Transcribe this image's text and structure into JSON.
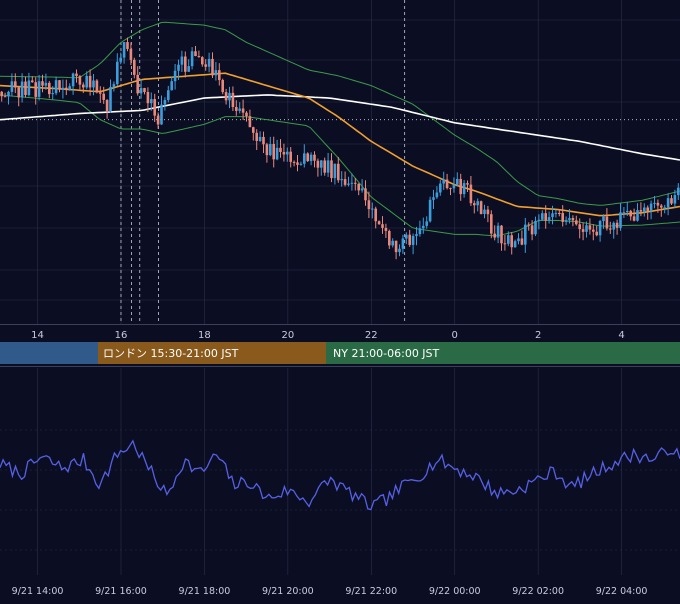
{
  "colors": {
    "background": "#0b0e22",
    "grid": "#2a2f4a",
    "candle_up": "#3b9ddc",
    "candle_down": "#e8887a",
    "bollinger": "#3c9a4a",
    "ma_short": "#f0a030",
    "ma_long": "#ffffff",
    "oscillator": "#5560e6",
    "session_tokyo": "#2f5a8a",
    "session_london": "#8a5a1c",
    "session_ny": "#2a6b45"
  },
  "sessions": [
    {
      "label": "",
      "color": "#2f5a8a"
    },
    {
      "label": "ロンドン 15:30-21:00 JST",
      "color": "#8a5a1c"
    },
    {
      "label": "NY 21:00-06:00 JST",
      "color": "#2a6b45"
    }
  ],
  "chart_data": [
    {
      "type": "candlestick",
      "title": "",
      "xlabel": "",
      "ylabel": "",
      "grid": true,
      "x_ticks": [
        "14",
        "16",
        "18",
        "20",
        "22",
        "0",
        "2",
        "4"
      ],
      "x_tick_hours": [
        14,
        16,
        18,
        20,
        22,
        24,
        26,
        28
      ],
      "x_range_hours": [
        13.1,
        29.4
      ],
      "y_scale_note": "relative price levels (no price axis visible)",
      "y_range": [
        0,
        100
      ],
      "vertical_markers_hours": [
        16.0,
        16.25,
        16.45,
        16.9,
        22.8
      ],
      "horizontal_marker_level": 63,
      "key_points": [
        {
          "h": 13.1,
          "price": 72
        },
        {
          "h": 14.5,
          "price": 74
        },
        {
          "h": 15.2,
          "price": 76
        },
        {
          "h": 15.7,
          "price": 68
        },
        {
          "h": 16.1,
          "price": 90
        },
        {
          "h": 16.4,
          "price": 72
        },
        {
          "h": 16.9,
          "price": 64
        },
        {
          "h": 17.4,
          "price": 80
        },
        {
          "h": 17.9,
          "price": 84
        },
        {
          "h": 18.5,
          "price": 72
        },
        {
          "h": 19.0,
          "price": 62
        },
        {
          "h": 19.6,
          "price": 52
        },
        {
          "h": 20.5,
          "price": 50
        },
        {
          "h": 21.2,
          "price": 46
        },
        {
          "h": 21.7,
          "price": 42
        },
        {
          "h": 22.3,
          "price": 26
        },
        {
          "h": 22.7,
          "price": 22
        },
        {
          "h": 23.2,
          "price": 28
        },
        {
          "h": 23.6,
          "price": 40
        },
        {
          "h": 24.0,
          "price": 44
        },
        {
          "h": 24.5,
          "price": 36
        },
        {
          "h": 25.0,
          "price": 26
        },
        {
          "h": 25.5,
          "price": 24
        },
        {
          "h": 26.0,
          "price": 30
        },
        {
          "h": 26.6,
          "price": 32
        },
        {
          "h": 27.2,
          "price": 28
        },
        {
          "h": 27.8,
          "price": 30
        },
        {
          "h": 28.6,
          "price": 33
        },
        {
          "h": 29.4,
          "price": 40
        }
      ],
      "ma_short_points": [
        [
          13.1,
          74
        ],
        [
          14.5,
          73
        ],
        [
          15.5,
          72
        ],
        [
          16.5,
          76
        ],
        [
          17.5,
          77
        ],
        [
          18.5,
          78
        ],
        [
          19.5,
          74
        ],
        [
          20.5,
          70
        ],
        [
          21.2,
          64
        ],
        [
          22.0,
          56
        ],
        [
          23.0,
          48
        ],
        [
          24.0,
          42
        ],
        [
          24.5,
          40
        ],
        [
          25.5,
          35
        ],
        [
          26.5,
          34
        ],
        [
          27.5,
          32
        ],
        [
          28.5,
          33
        ],
        [
          29.4,
          35
        ]
      ],
      "ma_long_points": [
        [
          13.1,
          63
        ],
        [
          15.0,
          65
        ],
        [
          16.5,
          66
        ],
        [
          18.0,
          70
        ],
        [
          19.5,
          71
        ],
        [
          21.0,
          70
        ],
        [
          22.5,
          67
        ],
        [
          24.0,
          62
        ],
        [
          25.5,
          59
        ],
        [
          27.0,
          56
        ],
        [
          28.5,
          52
        ],
        [
          29.4,
          50
        ]
      ],
      "band_width_points": [
        [
          13.1,
          3
        ],
        [
          15.0,
          4
        ],
        [
          16.0,
          14
        ],
        [
          17.0,
          18
        ],
        [
          18.0,
          16
        ],
        [
          19.0,
          12
        ],
        [
          20.5,
          9
        ],
        [
          22.0,
          18
        ],
        [
          23.0,
          20
        ],
        [
          24.0,
          16
        ],
        [
          25.0,
          12
        ],
        [
          26.0,
          4
        ],
        [
          27.0,
          3
        ],
        [
          28.5,
          4
        ],
        [
          29.4,
          5
        ]
      ]
    },
    {
      "type": "line",
      "title": "",
      "xlabel": "",
      "ylabel": "",
      "grid": true,
      "x_ticks": [
        "9/21 14:00",
        "9/21 16:00",
        "9/21 18:00",
        "9/21 20:00",
        "9/21 22:00",
        "9/22 00:00",
        "9/22 02:00",
        "9/22 04:00"
      ],
      "x_tick_hours": [
        14,
        16,
        18,
        20,
        22,
        24,
        26,
        28
      ],
      "x_range_hours": [
        13.1,
        29.4
      ],
      "y_scale_note": "oscillator in relative units (no axis labels visible)",
      "y_range": [
        0,
        100
      ],
      "key_points": [
        {
          "h": 13.1,
          "v": 55
        },
        {
          "h": 13.6,
          "v": 48
        },
        {
          "h": 14.1,
          "v": 60
        },
        {
          "h": 14.6,
          "v": 52
        },
        {
          "h": 15.1,
          "v": 58
        },
        {
          "h": 15.5,
          "v": 40
        },
        {
          "h": 15.9,
          "v": 62
        },
        {
          "h": 16.3,
          "v": 70
        },
        {
          "h": 16.7,
          "v": 50
        },
        {
          "h": 17.1,
          "v": 32
        },
        {
          "h": 17.5,
          "v": 58
        },
        {
          "h": 17.9,
          "v": 48
        },
        {
          "h": 18.3,
          "v": 62
        },
        {
          "h": 18.7,
          "v": 40
        },
        {
          "h": 19.1,
          "v": 42
        },
        {
          "h": 19.5,
          "v": 30
        },
        {
          "h": 20.0,
          "v": 36
        },
        {
          "h": 20.5,
          "v": 28
        },
        {
          "h": 21.0,
          "v": 44
        },
        {
          "h": 21.5,
          "v": 34
        },
        {
          "h": 22.0,
          "v": 24
        },
        {
          "h": 22.4,
          "v": 30
        },
        {
          "h": 22.8,
          "v": 40
        },
        {
          "h": 23.2,
          "v": 48
        },
        {
          "h": 23.6,
          "v": 58
        },
        {
          "h": 24.0,
          "v": 52
        },
        {
          "h": 24.5,
          "v": 46
        },
        {
          "h": 25.0,
          "v": 34
        },
        {
          "h": 25.5,
          "v": 36
        },
        {
          "h": 26.0,
          "v": 44
        },
        {
          "h": 26.4,
          "v": 50
        },
        {
          "h": 26.8,
          "v": 38
        },
        {
          "h": 27.3,
          "v": 48
        },
        {
          "h": 27.8,
          "v": 56
        },
        {
          "h": 28.3,
          "v": 62
        },
        {
          "h": 28.8,
          "v": 58
        },
        {
          "h": 29.2,
          "v": 68
        },
        {
          "h": 29.4,
          "v": 58
        }
      ]
    }
  ]
}
